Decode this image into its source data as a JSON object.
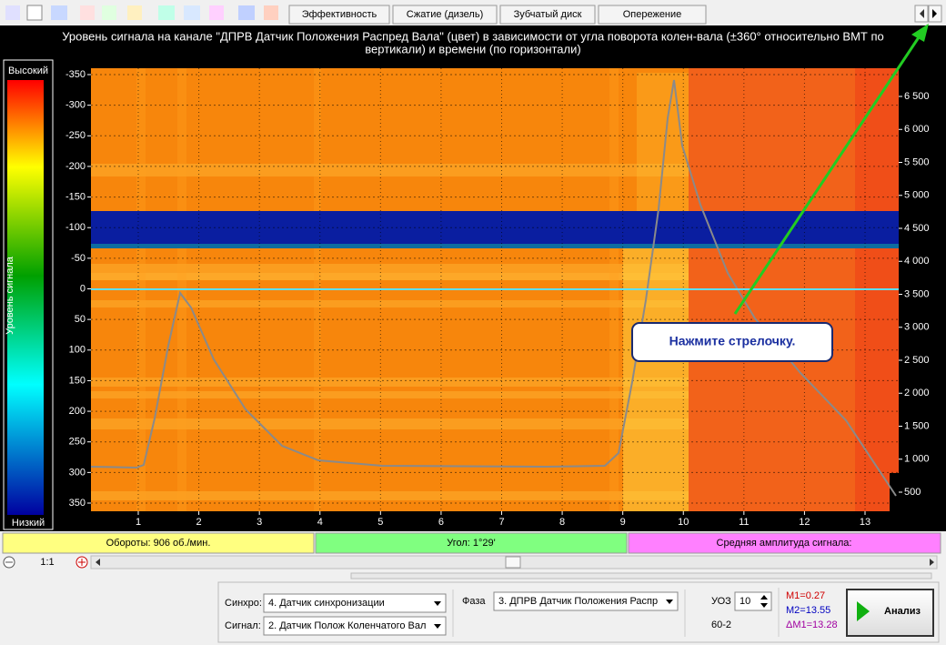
{
  "toolbar": {
    "tabs": [
      "Эффективность",
      "Сжатие (дизель)",
      "Зубчатый диск",
      "Опережение"
    ]
  },
  "chart": {
    "title_lines": [
      "Уровень сигнала на канале \"ДПРВ Датчик Положения Распред Вала\" (цвет) в зависимости от угла поворота колен-вала (±360° относительно ВМТ по",
      "вертикали) и времени (по горизонтали)"
    ],
    "color_scale": {
      "high": "Высокий",
      "axis_label": "Уровень сигнала",
      "low": "Низкий"
    },
    "left_ticks": [
      -350,
      -300,
      -250,
      -200,
      -150,
      -100,
      -50,
      0,
      50,
      100,
      150,
      200,
      250,
      300,
      350
    ],
    "right_ticks": [
      {
        "value": 6500,
        "label": "6 500"
      },
      {
        "value": 6000,
        "label": "6 000"
      },
      {
        "value": 5500,
        "label": "5 500"
      },
      {
        "value": 5000,
        "label": "5 000"
      },
      {
        "value": 4500,
        "label": "4 500"
      },
      {
        "value": 4000,
        "label": "4 000"
      },
      {
        "value": 3500,
        "label": "3 500"
      },
      {
        "value": 3000,
        "label": "3 000"
      },
      {
        "value": 2500,
        "label": "2 500"
      },
      {
        "value": 2000,
        "label": "2 000"
      },
      {
        "value": 1500,
        "label": "1 500"
      },
      {
        "value": 1000,
        "label": "1 000"
      },
      {
        "value": 500,
        "label": "500"
      }
    ],
    "bottom_ticks": [
      1,
      2,
      3,
      4,
      5,
      6,
      7,
      8,
      9,
      10,
      11,
      12,
      13
    ],
    "callout": "Нажмите стрелочку."
  },
  "status": {
    "rpm": "Обороты:  906 об./мин.",
    "angle": "Угол:  1°29'",
    "amplitude": "Средняя амплитуда сигнала:"
  },
  "zoom": "1:1",
  "controls": {
    "sync_label": "Синхро:",
    "sync_value": "4.  Датчик синхронизации",
    "signal_label": "Сигнал:",
    "signal_value": "2.  Датчик Полож Коленчатого Вал",
    "phase_label": "Фаза",
    "phase_value": "3.  ДПРВ Датчик Положения Распр",
    "uoz_label": "УОЗ",
    "uoz_value": "10",
    "teeth": "60-2",
    "m1": "M1=0.27",
    "m2": "M2=13.55",
    "dm1": "ΔM1=13.28",
    "analyze": "Анализ"
  }
}
